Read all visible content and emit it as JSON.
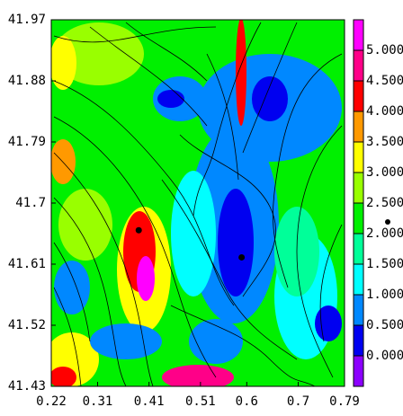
{
  "chart_data": {
    "type": "contour",
    "xlim": [
      0.22,
      0.79
    ],
    "ylim": [
      41.43,
      41.97
    ],
    "xticks": [
      0.22,
      0.31,
      0.41,
      0.51,
      0.6,
      0.7,
      0.79
    ],
    "yticks": [
      41.43,
      41.52,
      41.61,
      41.7,
      41.79,
      41.88,
      41.97
    ],
    "points": {
      "x": [
        0.39,
        0.59
      ],
      "y": [
        41.66,
        41.62
      ],
      "color": "#000000"
    },
    "colorbar": {
      "lim": [
        -0.5,
        5.5
      ],
      "ticks": [
        {
          "value": 0,
          "label": "0.000"
        },
        {
          "value": 0.5,
          "label": "0.500"
        },
        {
          "value": 1,
          "label": "1.000"
        },
        {
          "value": 1.5,
          "label": "1.500"
        },
        {
          "value": 2,
          "label": "2.000"
        },
        {
          "value": 2.5,
          "label": "2.500"
        },
        {
          "value": 3,
          "label": "3.000"
        },
        {
          "value": 3.5,
          "label": "3.500"
        },
        {
          "value": 4,
          "label": "4.000"
        },
        {
          "value": 4.5,
          "label": "4.500"
        },
        {
          "value": 5,
          "label": "5.000"
        }
      ],
      "colors": [
        "#8c00ff",
        "#0000f0",
        "#0088ff",
        "#00ffff",
        "#00ff99",
        "#00f000",
        "#99ff00",
        "#ffff00",
        "#ff9900",
        "#ff0000",
        "#ff0088",
        "#ff00ff"
      ]
    }
  }
}
